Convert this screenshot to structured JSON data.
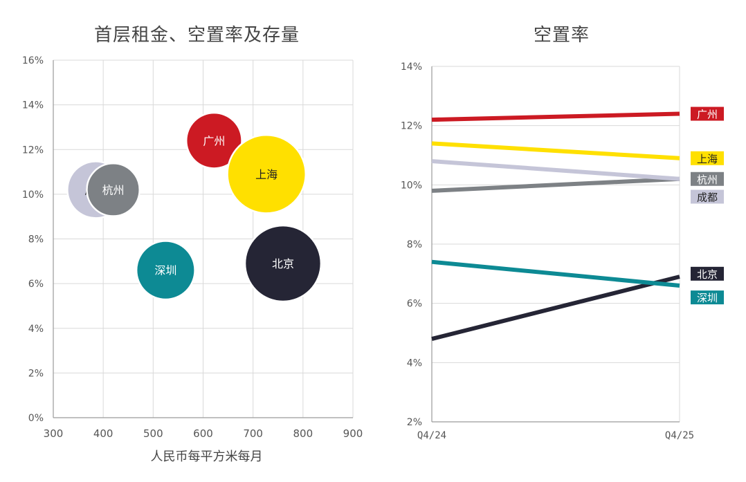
{
  "chart_data": [
    {
      "type": "scatter",
      "subtype": "bubble",
      "title": "首层租金、空置率及存量",
      "xlabel": "人民币每平方米每月",
      "ylabel": "",
      "xlim": [
        300,
        900
      ],
      "ylim": [
        0,
        16
      ],
      "xticks": [
        "300",
        "400",
        "500",
        "600",
        "700",
        "800",
        "900"
      ],
      "yticks": [
        "0%",
        "2%",
        "4%",
        "6%",
        "8%",
        "10%",
        "12%",
        "14%",
        "16%"
      ],
      "grid": true,
      "points": [
        {
          "name": "成都",
          "x": 385,
          "y": 10.2,
          "color": "#c5c5d8",
          "text_color": "#222222",
          "size": 1.0
        },
        {
          "name": "杭州",
          "x": 420,
          "y": 10.2,
          "color": "#7d8185",
          "text_color": "#ffffff",
          "size": 0.93
        },
        {
          "name": "广州",
          "x": 622,
          "y": 12.4,
          "color": "#cc1a23",
          "text_color": "#ffffff",
          "size": 0.98
        },
        {
          "name": "上海",
          "x": 727,
          "y": 10.9,
          "color": "#ffe000",
          "text_color": "#222222",
          "size": 1.38
        },
        {
          "name": "深圳",
          "x": 525,
          "y": 6.6,
          "color": "#0d8a94",
          "text_color": "#ffffff",
          "size": 1.03
        },
        {
          "name": "北京",
          "x": 760,
          "y": 6.9,
          "color": "#252535",
          "text_color": "#ffffff",
          "size": 1.34
        }
      ]
    },
    {
      "type": "line",
      "title": "空置率",
      "xlabel": "",
      "ylabel": "",
      "x": [
        "Q4/24",
        "Q4/25"
      ],
      "ylim": [
        2,
        14
      ],
      "yticks": [
        "2%",
        "4%",
        "6%",
        "8%",
        "10%",
        "12%",
        "14%"
      ],
      "grid": true,
      "series": [
        {
          "name": "广州",
          "values": [
            12.2,
            12.4
          ],
          "color": "#cc1a23",
          "label_color": "#cc1a23",
          "label_text_color": "#ffffff",
          "label_y": 12.4
        },
        {
          "name": "上海",
          "values": [
            11.4,
            10.9
          ],
          "color": "#ffe000",
          "label_color": "#ffe000",
          "label_text_color": "#222222",
          "label_y": 10.9
        },
        {
          "name": "杭州",
          "values": [
            9.8,
            10.2
          ],
          "color": "#7d8185",
          "label_color": "#7d8185",
          "label_text_color": "#ffffff",
          "label_y": 10.2
        },
        {
          "name": "成都",
          "values": [
            10.8,
            10.2
          ],
          "color": "#c5c5d8",
          "label_color": "#c5c5d8",
          "label_text_color": "#222222",
          "label_y": 9.6
        },
        {
          "name": "北京",
          "values": [
            4.8,
            6.9
          ],
          "color": "#252535",
          "label_color": "#252535",
          "label_text_color": "#ffffff",
          "label_y": 7.0
        },
        {
          "name": "深圳",
          "values": [
            7.4,
            6.6
          ],
          "color": "#0d8a94",
          "label_color": "#0d8a94",
          "label_text_color": "#ffffff",
          "label_y": 6.2
        }
      ]
    }
  ]
}
